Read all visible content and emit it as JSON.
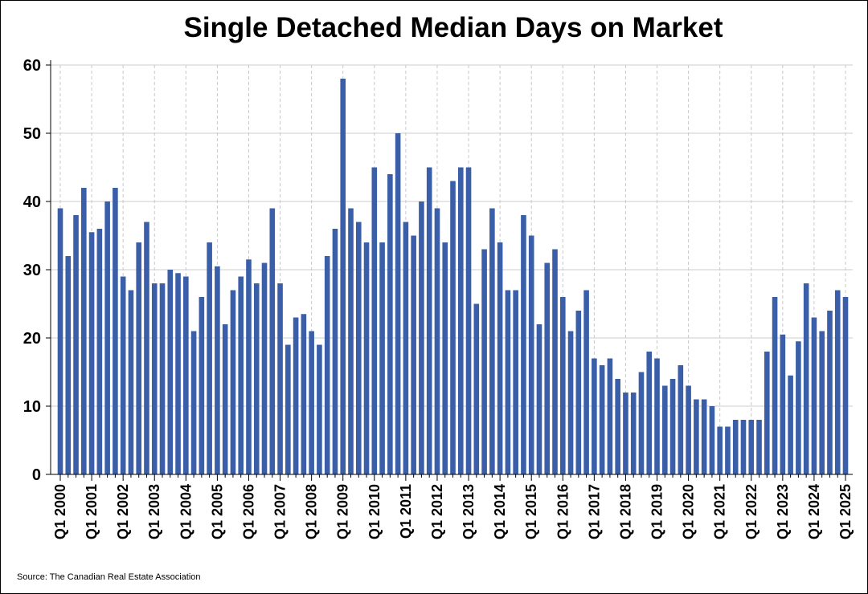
{
  "chart_data": {
    "type": "bar",
    "title": "Single Detached Median Days on Market",
    "xlabel": "",
    "ylabel": "",
    "ylim": [
      0,
      60
    ],
    "yticks": [
      0,
      10,
      20,
      30,
      40,
      50,
      60
    ],
    "grid": true,
    "bar_color": "#3a5fa8",
    "categories": [
      "Q1 2000",
      "Q2 2000",
      "Q3 2000",
      "Q4 2000",
      "Q1 2001",
      "Q2 2001",
      "Q3 2001",
      "Q4 2001",
      "Q1 2002",
      "Q2 2002",
      "Q3 2002",
      "Q4 2002",
      "Q1 2003",
      "Q2 2003",
      "Q3 2003",
      "Q4 2003",
      "Q1 2004",
      "Q2 2004",
      "Q3 2004",
      "Q4 2004",
      "Q1 2005",
      "Q2 2005",
      "Q3 2005",
      "Q4 2005",
      "Q1 2006",
      "Q2 2006",
      "Q3 2006",
      "Q4 2006",
      "Q1 2007",
      "Q2 2007",
      "Q3 2007",
      "Q4 2007",
      "Q1 2008",
      "Q2 2008",
      "Q3 2008",
      "Q4 2008",
      "Q1 2009",
      "Q2 2009",
      "Q3 2009",
      "Q4 2009",
      "Q1 2010",
      "Q2 2010",
      "Q3 2010",
      "Q4 2010",
      "Q1 2011",
      "Q2 2011",
      "Q3 2011",
      "Q4 2011",
      "Q1 2012",
      "Q2 2012",
      "Q3 2012",
      "Q4 2012",
      "Q1 2013",
      "Q2 2013",
      "Q3 2013",
      "Q4 2013",
      "Q1 2014",
      "Q2 2014",
      "Q3 2014",
      "Q4 2014",
      "Q1 2015",
      "Q2 2015",
      "Q3 2015",
      "Q4 2015",
      "Q1 2016",
      "Q2 2016",
      "Q3 2016",
      "Q4 2016",
      "Q1 2017",
      "Q2 2017",
      "Q3 2017",
      "Q4 2017",
      "Q1 2018",
      "Q2 2018",
      "Q3 2018",
      "Q4 2018",
      "Q1 2019",
      "Q2 2019",
      "Q3 2019",
      "Q4 2019",
      "Q1 2020",
      "Q2 2020",
      "Q3 2020",
      "Q4 2020",
      "Q1 2021",
      "Q2 2021",
      "Q3 2021",
      "Q4 2021",
      "Q1 2022",
      "Q2 2022",
      "Q3 2022",
      "Q4 2022",
      "Q1 2023",
      "Q2 2023",
      "Q3 2023",
      "Q4 2023",
      "Q1 2024",
      "Q2 2024",
      "Q3 2024",
      "Q4 2024",
      "Q1 2025"
    ],
    "values": [
      39,
      32,
      38,
      42,
      35.5,
      36,
      40,
      42,
      29,
      27,
      34,
      37,
      28,
      28,
      30,
      29.5,
      29,
      21,
      26,
      34,
      30.5,
      22,
      27,
      29,
      31.5,
      28,
      31,
      39,
      28,
      19,
      23,
      23.5,
      21,
      19,
      32,
      36,
      58,
      39,
      37,
      34,
      45,
      34,
      44,
      50,
      37,
      35,
      40,
      45,
      39,
      34,
      43,
      45,
      45,
      25,
      33,
      39,
      34,
      27,
      27,
      38,
      35,
      22,
      31,
      33,
      26,
      21,
      24,
      27,
      17,
      16,
      17,
      14,
      12,
      12,
      15,
      18,
      17,
      13,
      14,
      16,
      13,
      11,
      11,
      10,
      7,
      7,
      8,
      8,
      8,
      8,
      18,
      26,
      20.5,
      14.5,
      19.5,
      28,
      23,
      21,
      24,
      27,
      26
    ],
    "xtick_labels": [
      "Q1 2000",
      "Q1 2001",
      "Q1 2002",
      "Q1 2003",
      "Q1 2004",
      "Q1 2005",
      "Q1 2006",
      "Q1 2007",
      "Q1 2008",
      "Q1 2009",
      "Q1 2010",
      "Q1 2011",
      "Q1 2012",
      "Q1 2013",
      "Q1 2014",
      "Q1 2015",
      "Q1 2016",
      "Q1 2017",
      "Q1 2018",
      "Q1 2019",
      "Q1 2020",
      "Q1 2021",
      "Q1 2022",
      "Q1 2023",
      "Q1 2024",
      "Q1 2025"
    ]
  },
  "source": "Source: The Canadian Real Estate Association"
}
